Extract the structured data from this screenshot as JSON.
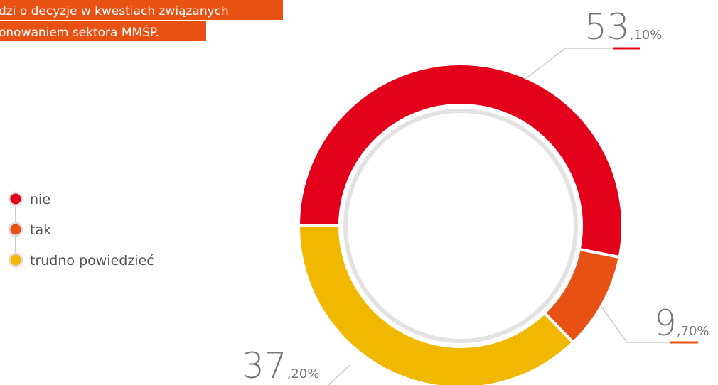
{
  "chart_data": {
    "type": "donut",
    "title_lines": [
      "dzi o decyzje w kwestiach związanych",
      "onowaniem sektora MMŚP."
    ],
    "categories": [
      "nie",
      "tak",
      "trudno powiedzieć"
    ],
    "values": [
      53.1,
      9.7,
      37.2
    ],
    "value_labels": [
      "53,10%",
      "9,70%",
      "37,20%"
    ],
    "colors": [
      "#e2001a",
      "#e85114",
      "#f0b900"
    ],
    "legend": "left"
  }
}
